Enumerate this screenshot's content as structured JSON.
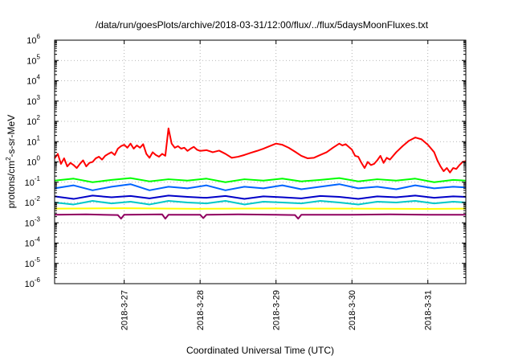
{
  "chart_data": {
    "type": "line",
    "title": "/data/run/goesPlots/archive/2018-03-31/12:00/flux/../flux/5daysMoonFluxes.txt",
    "xlabel": "Coordinated Universal Time (UTC)",
    "ylabel_parts": [
      "protons/cm",
      "2",
      "-s-sr-MeV"
    ],
    "yscale": "log",
    "ylim": [
      1e-06,
      1000000.0
    ],
    "yticks": [
      {
        "value": 1e-06,
        "base": "10",
        "exp": "-6"
      },
      {
        "value": 1e-05,
        "base": "10",
        "exp": "-5"
      },
      {
        "value": 0.0001,
        "base": "10",
        "exp": "-4"
      },
      {
        "value": 0.001,
        "base": "10",
        "exp": "-3"
      },
      {
        "value": 0.01,
        "base": "10",
        "exp": "-2"
      },
      {
        "value": 0.1,
        "base": "10",
        "exp": "-1"
      },
      {
        "value": 1,
        "base": "10",
        "exp": "0"
      },
      {
        "value": 10,
        "base": "10",
        "exp": "1"
      },
      {
        "value": 100,
        "base": "10",
        "exp": "2"
      },
      {
        "value": 1000,
        "base": "10",
        "exp": "3"
      },
      {
        "value": 10000,
        "base": "10",
        "exp": "4"
      },
      {
        "value": 100000,
        "base": "10",
        "exp": "5"
      },
      {
        "value": 1000000,
        "base": "10",
        "exp": "6"
      }
    ],
    "xlim": [
      "2018-03-26T02:00",
      "2018-03-31T12:00"
    ],
    "xticks": [
      {
        "value": "2018-03-27T00:00",
        "label": "2018-3-27"
      },
      {
        "value": "2018-03-28T00:00",
        "label": "2018-3-28"
      },
      {
        "value": "2018-03-29T00:00",
        "label": "2018-3-29"
      },
      {
        "value": "2018-03-30T00:00",
        "label": "2018-3-30"
      },
      {
        "value": "2018-03-31T00:00",
        "label": "2018-3-31"
      }
    ],
    "grid": true,
    "legend": "none",
    "series": [
      {
        "color": "#ff0000",
        "points": [
          [
            "2018-03-26T02:00",
            1.5
          ],
          [
            "2018-03-26T03:00",
            2.5
          ],
          [
            "2018-03-26T04:00",
            0.8
          ],
          [
            "2018-03-26T05:00",
            1.5
          ],
          [
            "2018-03-26T06:00",
            0.6
          ],
          [
            "2018-03-26T07:00",
            0.9
          ],
          [
            "2018-03-26T08:00",
            0.7
          ],
          [
            "2018-03-26T09:00",
            0.5
          ],
          [
            "2018-03-26T10:00",
            0.8
          ],
          [
            "2018-03-26T11:00",
            1.2
          ],
          [
            "2018-03-26T12:00",
            0.6
          ],
          [
            "2018-03-26T13:00",
            0.9
          ],
          [
            "2018-03-26T14:00",
            1.0
          ],
          [
            "2018-03-26T15:00",
            1.5
          ],
          [
            "2018-03-26T16:00",
            1.8
          ],
          [
            "2018-03-26T17:00",
            1.3
          ],
          [
            "2018-03-26T18:00",
            2.0
          ],
          [
            "2018-03-26T19:00",
            2.5
          ],
          [
            "2018-03-26T20:00",
            3.0
          ],
          [
            "2018-03-26T21:00",
            2.2
          ],
          [
            "2018-03-26T22:00",
            4.5
          ],
          [
            "2018-03-26T23:00",
            6.0
          ],
          [
            "2018-03-27T00:00",
            7.0
          ],
          [
            "2018-03-27T01:00",
            5.0
          ],
          [
            "2018-03-27T02:00",
            8.0
          ],
          [
            "2018-03-27T03:00",
            4.5
          ],
          [
            "2018-03-27T04:00",
            6.5
          ],
          [
            "2018-03-27T05:00",
            5.0
          ],
          [
            "2018-03-27T06:00",
            7.5
          ],
          [
            "2018-03-27T07:00",
            2.5
          ],
          [
            "2018-03-27T08:00",
            1.6
          ],
          [
            "2018-03-27T09:00",
            3.0
          ],
          [
            "2018-03-27T10:00",
            2.2
          ],
          [
            "2018-03-27T11:00",
            1.8
          ],
          [
            "2018-03-27T12:00",
            2.5
          ],
          [
            "2018-03-27T13:00",
            2.0
          ],
          [
            "2018-03-27T14:00",
            45.0
          ],
          [
            "2018-03-27T15:00",
            8.0
          ],
          [
            "2018-03-27T16:00",
            5.0
          ],
          [
            "2018-03-27T17:00",
            6.0
          ],
          [
            "2018-03-27T18:00",
            4.5
          ],
          [
            "2018-03-27T19:00",
            5.0
          ],
          [
            "2018-03-27T20:00",
            3.5
          ],
          [
            "2018-03-27T21:00",
            4.5
          ],
          [
            "2018-03-27T22:00",
            5.5
          ],
          [
            "2018-03-27T23:00",
            4.0
          ],
          [
            "2018-03-28T00:00",
            3.5
          ],
          [
            "2018-03-28T02:00",
            3.8
          ],
          [
            "2018-03-28T04:00",
            3.0
          ],
          [
            "2018-03-28T06:00",
            3.6
          ],
          [
            "2018-03-28T08:00",
            2.5
          ],
          [
            "2018-03-28T10:00",
            1.6
          ],
          [
            "2018-03-28T12:00",
            1.8
          ],
          [
            "2018-03-28T14:00",
            2.2
          ],
          [
            "2018-03-28T16:00",
            2.8
          ],
          [
            "2018-03-28T18:00",
            3.5
          ],
          [
            "2018-03-28T20:00",
            4.5
          ],
          [
            "2018-03-28T22:00",
            6.0
          ],
          [
            "2018-03-29T00:00",
            8.0
          ],
          [
            "2018-03-29T02:00",
            7.0
          ],
          [
            "2018-03-29T04:00",
            5.0
          ],
          [
            "2018-03-29T06:00",
            3.2
          ],
          [
            "2018-03-29T08:00",
            2.0
          ],
          [
            "2018-03-29T10:00",
            1.5
          ],
          [
            "2018-03-29T12:00",
            1.6
          ],
          [
            "2018-03-29T14:00",
            2.2
          ],
          [
            "2018-03-29T16:00",
            3.0
          ],
          [
            "2018-03-29T18:00",
            5.0
          ],
          [
            "2018-03-29T20:00",
            8.0
          ],
          [
            "2018-03-29T21:00",
            6.5
          ],
          [
            "2018-03-29T22:00",
            7.5
          ],
          [
            "2018-03-30T00:00",
            4.0
          ],
          [
            "2018-03-30T01:00",
            2.0
          ],
          [
            "2018-03-30T02:00",
            1.8
          ],
          [
            "2018-03-30T03:00",
            0.9
          ],
          [
            "2018-03-30T04:00",
            0.5
          ],
          [
            "2018-03-30T05:00",
            1.0
          ],
          [
            "2018-03-30T06:00",
            0.7
          ],
          [
            "2018-03-30T07:00",
            0.8
          ],
          [
            "2018-03-30T08:00",
            1.2
          ],
          [
            "2018-03-30T09:00",
            2.0
          ],
          [
            "2018-03-30T10:00",
            0.9
          ],
          [
            "2018-03-30T11:00",
            1.6
          ],
          [
            "2018-03-30T12:00",
            1.3
          ],
          [
            "2018-03-30T14:00",
            3.0
          ],
          [
            "2018-03-30T16:00",
            6.0
          ],
          [
            "2018-03-30T18:00",
            11.0
          ],
          [
            "2018-03-30T20:00",
            16.0
          ],
          [
            "2018-03-30T22:00",
            13.0
          ],
          [
            "2018-03-31T00:00",
            7.0
          ],
          [
            "2018-03-31T02:00",
            3.0
          ],
          [
            "2018-03-31T03:00",
            1.2
          ],
          [
            "2018-03-31T04:00",
            0.6
          ],
          [
            "2018-03-31T05:00",
            0.35
          ],
          [
            "2018-03-31T06:00",
            0.5
          ],
          [
            "2018-03-31T07:00",
            0.3
          ],
          [
            "2018-03-31T08:00",
            0.5
          ],
          [
            "2018-03-31T09:00",
            0.45
          ],
          [
            "2018-03-31T10:00",
            0.7
          ],
          [
            "2018-03-31T11:00",
            1.0
          ],
          [
            "2018-03-31T12:00",
            1.1
          ]
        ]
      },
      {
        "color": "#00ff00",
        "points": [
          [
            "2018-03-26T02:00",
            0.12
          ],
          [
            "2018-03-26T08:00",
            0.15
          ],
          [
            "2018-03-26T14:00",
            0.1
          ],
          [
            "2018-03-26T20:00",
            0.13
          ],
          [
            "2018-03-27T02:00",
            0.16
          ],
          [
            "2018-03-27T08:00",
            0.11
          ],
          [
            "2018-03-27T14:00",
            0.14
          ],
          [
            "2018-03-27T20:00",
            0.12
          ],
          [
            "2018-03-28T02:00",
            0.15
          ],
          [
            "2018-03-28T08:00",
            0.1
          ],
          [
            "2018-03-28T14:00",
            0.14
          ],
          [
            "2018-03-28T20:00",
            0.12
          ],
          [
            "2018-03-29T02:00",
            0.15
          ],
          [
            "2018-03-29T08:00",
            0.11
          ],
          [
            "2018-03-29T14:00",
            0.13
          ],
          [
            "2018-03-29T20:00",
            0.16
          ],
          [
            "2018-03-30T02:00",
            0.11
          ],
          [
            "2018-03-30T08:00",
            0.14
          ],
          [
            "2018-03-30T14:00",
            0.12
          ],
          [
            "2018-03-30T20:00",
            0.15
          ],
          [
            "2018-03-31T02:00",
            0.1
          ],
          [
            "2018-03-31T08:00",
            0.13
          ],
          [
            "2018-03-31T12:00",
            0.12
          ]
        ]
      },
      {
        "color": "#00c8c8",
        "points": [
          [
            "2018-03-26T02:00",
            0.01
          ],
          [
            "2018-03-26T08:00",
            0.008
          ],
          [
            "2018-03-26T14:00",
            0.012
          ],
          [
            "2018-03-26T20:00",
            0.009
          ],
          [
            "2018-03-27T02:00",
            0.011
          ],
          [
            "2018-03-27T08:00",
            0.008
          ],
          [
            "2018-03-27T14:00",
            0.012
          ],
          [
            "2018-03-27T20:00",
            0.01
          ],
          [
            "2018-03-28T02:00",
            0.009
          ],
          [
            "2018-03-28T08:00",
            0.012
          ],
          [
            "2018-03-28T14:00",
            0.008
          ],
          [
            "2018-03-28T20:00",
            0.011
          ],
          [
            "2018-03-29T02:00",
            0.01
          ],
          [
            "2018-03-29T08:00",
            0.009
          ],
          [
            "2018-03-29T14:00",
            0.012
          ],
          [
            "2018-03-29T20:00",
            0.01
          ],
          [
            "2018-03-30T02:00",
            0.008
          ],
          [
            "2018-03-30T08:00",
            0.011
          ],
          [
            "2018-03-30T14:00",
            0.01
          ],
          [
            "2018-03-30T20:00",
            0.012
          ],
          [
            "2018-03-31T02:00",
            0.009
          ],
          [
            "2018-03-31T08:00",
            0.011
          ],
          [
            "2018-03-31T12:00",
            0.01
          ]
        ]
      },
      {
        "color": "#0064ff",
        "points": [
          [
            "2018-03-26T02:00",
            0.05
          ],
          [
            "2018-03-26T08:00",
            0.07
          ],
          [
            "2018-03-26T14:00",
            0.04
          ],
          [
            "2018-03-26T20:00",
            0.06
          ],
          [
            "2018-03-27T02:00",
            0.08
          ],
          [
            "2018-03-27T08:00",
            0.04
          ],
          [
            "2018-03-27T14:00",
            0.06
          ],
          [
            "2018-03-27T20:00",
            0.05
          ],
          [
            "2018-03-28T02:00",
            0.07
          ],
          [
            "2018-03-28T08:00",
            0.04
          ],
          [
            "2018-03-28T14:00",
            0.06
          ],
          [
            "2018-03-28T20:00",
            0.05
          ],
          [
            "2018-03-29T02:00",
            0.07
          ],
          [
            "2018-03-29T08:00",
            0.045
          ],
          [
            "2018-03-29T14:00",
            0.06
          ],
          [
            "2018-03-29T20:00",
            0.08
          ],
          [
            "2018-03-30T02:00",
            0.05
          ],
          [
            "2018-03-30T08:00",
            0.06
          ],
          [
            "2018-03-30T14:00",
            0.045
          ],
          [
            "2018-03-30T20:00",
            0.07
          ],
          [
            "2018-03-31T02:00",
            0.05
          ],
          [
            "2018-03-31T08:00",
            0.06
          ],
          [
            "2018-03-31T12:00",
            0.055
          ]
        ]
      },
      {
        "color": "#0000c8",
        "points": [
          [
            "2018-03-26T02:00",
            0.02
          ],
          [
            "2018-03-26T08:00",
            0.015
          ],
          [
            "2018-03-26T14:00",
            0.022
          ],
          [
            "2018-03-26T20:00",
            0.018
          ],
          [
            "2018-03-27T02:00",
            0.021
          ],
          [
            "2018-03-27T08:00",
            0.016
          ],
          [
            "2018-03-27T14:00",
            0.022
          ],
          [
            "2018-03-27T20:00",
            0.019
          ],
          [
            "2018-03-28T02:00",
            0.017
          ],
          [
            "2018-03-28T08:00",
            0.021
          ],
          [
            "2018-03-28T14:00",
            0.015
          ],
          [
            "2018-03-28T20:00",
            0.02
          ],
          [
            "2018-03-29T02:00",
            0.018
          ],
          [
            "2018-03-29T08:00",
            0.016
          ],
          [
            "2018-03-29T14:00",
            0.021
          ],
          [
            "2018-03-29T20:00",
            0.019
          ],
          [
            "2018-03-30T02:00",
            0.015
          ],
          [
            "2018-03-30T08:00",
            0.02
          ],
          [
            "2018-03-30T14:00",
            0.018
          ],
          [
            "2018-03-30T20:00",
            0.022
          ],
          [
            "2018-03-31T02:00",
            0.017
          ],
          [
            "2018-03-31T08:00",
            0.02
          ],
          [
            "2018-03-31T12:00",
            0.019
          ]
        ]
      },
      {
        "color": "#ffff00",
        "points": [
          [
            "2018-03-26T02:00",
            0.005
          ],
          [
            "2018-03-27T00:00",
            0.0052
          ],
          [
            "2018-03-28T00:00",
            0.0049
          ],
          [
            "2018-03-29T00:00",
            0.0051
          ],
          [
            "2018-03-30T00:00",
            0.005
          ],
          [
            "2018-03-31T00:00",
            0.0048
          ],
          [
            "2018-03-31T12:00",
            0.005
          ]
        ]
      },
      {
        "color": "#900060",
        "points": [
          [
            "2018-03-26T02:00",
            0.0025
          ],
          [
            "2018-03-26T12:00",
            0.0026
          ],
          [
            "2018-03-26T22:00",
            0.0024
          ],
          [
            "2018-03-26T23:00",
            0.0016
          ],
          [
            "2018-03-27T00:00",
            0.0025
          ],
          [
            "2018-03-27T12:00",
            0.0026
          ],
          [
            "2018-03-27T13:00",
            0.0016
          ],
          [
            "2018-03-27T14:00",
            0.0025
          ],
          [
            "2018-03-28T00:00",
            0.0025
          ],
          [
            "2018-03-28T01:00",
            0.0017
          ],
          [
            "2018-03-28T02:00",
            0.0025
          ],
          [
            "2018-03-28T12:00",
            0.0026
          ],
          [
            "2018-03-29T00:00",
            0.0025
          ],
          [
            "2018-03-29T06:00",
            0.0024
          ],
          [
            "2018-03-29T07:00",
            0.0016
          ],
          [
            "2018-03-29T08:00",
            0.0025
          ],
          [
            "2018-03-30T00:00",
            0.0025
          ],
          [
            "2018-03-30T12:00",
            0.0026
          ],
          [
            "2018-03-31T00:00",
            0.0025
          ],
          [
            "2018-03-31T12:00",
            0.0025
          ]
        ]
      }
    ]
  }
}
